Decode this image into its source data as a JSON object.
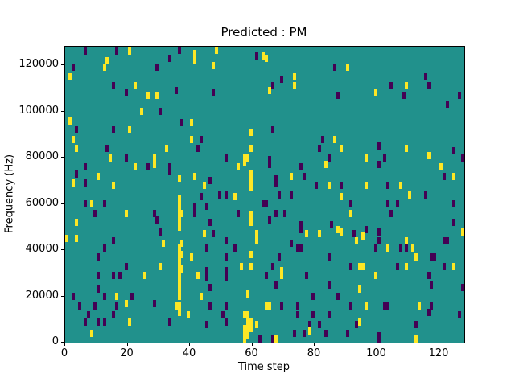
{
  "chart_data": {
    "type": "heatmap",
    "title": "Predicted : PM",
    "xlabel": "Time step",
    "ylabel": "Frequency (Hz)",
    "xlim": [
      0,
      128
    ],
    "ylim": [
      0,
      128000
    ],
    "xticks": [
      0,
      20,
      40,
      60,
      80,
      100,
      120
    ],
    "yticks": [
      0,
      20000,
      40000,
      60000,
      80000,
      100000,
      120000
    ],
    "grid": false,
    "legend": null,
    "colors": {
      "background": "#21918c",
      "low": "#440154",
      "high": "#fde725",
      "figure": "#ffffff",
      "text": "#000000"
    },
    "freq_unit": "kHz",
    "cell_legend": "cells are [time_step, frequency_kHz, value] where value 1=high(yellow) 0=low(dark)",
    "cells": [
      [
        6,
        126,
        0
      ],
      [
        16,
        126,
        0
      ],
      [
        20,
        126,
        1
      ],
      [
        48,
        127,
        1
      ],
      [
        13,
        122,
        1
      ],
      [
        12,
        119,
        1
      ],
      [
        2,
        119,
        0
      ],
      [
        29,
        119,
        0
      ],
      [
        1,
        115,
        1
      ],
      [
        15,
        111,
        0
      ],
      [
        22,
        111,
        1
      ],
      [
        19,
        108,
        0
      ],
      [
        26,
        107,
        1
      ],
      [
        29,
        107,
        1
      ],
      [
        24,
        100,
        1
      ],
      [
        30,
        100,
        0
      ],
      [
        1,
        96,
        1
      ],
      [
        3,
        92,
        0
      ],
      [
        15,
        92,
        0
      ],
      [
        20,
        92,
        1
      ],
      [
        2,
        88,
        1
      ],
      [
        36,
        127,
        0
      ],
      [
        33,
        123,
        0
      ],
      [
        41,
        125,
        1
      ],
      [
        41,
        122,
        1
      ],
      [
        61,
        124,
        0
      ],
      [
        63,
        124,
        1
      ],
      [
        47,
        120,
        1
      ],
      [
        35,
        109,
        0
      ],
      [
        47,
        108,
        0
      ],
      [
        37,
        95,
        0
      ],
      [
        40,
        95,
        1
      ],
      [
        59,
        91,
        1
      ],
      [
        40,
        88,
        1
      ],
      [
        43,
        88,
        0
      ],
      [
        64,
        123,
        1
      ],
      [
        86,
        119,
        0
      ],
      [
        90,
        119,
        1
      ],
      [
        69,
        114,
        0
      ],
      [
        73,
        115,
        1
      ],
      [
        66,
        111,
        0
      ],
      [
        73,
        111,
        1
      ],
      [
        65,
        109,
        1
      ],
      [
        87,
        107,
        0
      ],
      [
        66,
        92,
        0
      ],
      [
        82,
        88,
        0
      ],
      [
        86,
        88,
        1
      ],
      [
        115,
        115,
        0
      ],
      [
        104,
        111,
        0
      ],
      [
        109,
        111,
        1
      ],
      [
        116,
        111,
        0
      ],
      [
        99,
        108,
        1
      ],
      [
        108,
        107,
        0
      ],
      [
        126,
        107,
        0
      ],
      [
        122,
        103,
        0
      ],
      [
        3,
        84,
        1
      ],
      [
        13,
        84,
        0
      ],
      [
        14,
        80,
        1
      ],
      [
        19,
        80,
        0
      ],
      [
        28,
        80,
        1
      ],
      [
        28,
        77,
        1
      ],
      [
        6,
        76,
        0
      ],
      [
        22,
        76,
        1
      ],
      [
        26,
        76,
        0
      ],
      [
        3,
        73,
        0
      ],
      [
        10,
        72,
        1
      ],
      [
        2,
        69,
        1
      ],
      [
        6,
        69,
        0
      ],
      [
        15,
        68,
        1
      ],
      [
        6,
        60,
        0
      ],
      [
        8,
        60,
        1
      ],
      [
        12,
        60,
        0
      ],
      [
        9,
        56,
        0
      ],
      [
        19,
        56,
        1
      ],
      [
        28,
        56,
        0
      ],
      [
        29,
        53,
        0
      ],
      [
        3,
        52,
        1
      ],
      [
        30,
        48,
        0
      ],
      [
        0,
        45,
        1
      ],
      [
        3,
        45,
        1
      ],
      [
        15,
        44,
        0
      ],
      [
        32,
        84,
        1
      ],
      [
        42,
        84,
        0
      ],
      [
        59,
        84,
        1
      ],
      [
        51,
        80,
        0
      ],
      [
        57,
        80,
        1
      ],
      [
        58,
        80,
        1
      ],
      [
        57,
        78,
        1
      ],
      [
        33,
        76,
        0
      ],
      [
        33,
        74,
        0
      ],
      [
        55,
        76,
        1
      ],
      [
        36,
        71,
        1
      ],
      [
        41,
        72,
        1
      ],
      [
        46,
        70,
        0
      ],
      [
        44,
        68,
        1
      ],
      [
        59,
        73,
        1
      ],
      [
        59,
        70,
        1
      ],
      [
        59,
        67,
        1
      ],
      [
        49,
        64,
        0
      ],
      [
        51,
        64,
        0
      ],
      [
        54,
        63,
        1
      ],
      [
        43,
        63,
        0
      ],
      [
        41,
        59,
        0
      ],
      [
        45,
        59,
        0
      ],
      [
        36,
        62,
        1
      ],
      [
        36,
        59,
        1
      ],
      [
        36,
        56,
        1
      ],
      [
        37,
        56,
        1
      ],
      [
        36,
        53,
        1
      ],
      [
        36,
        50,
        1
      ],
      [
        55,
        56,
        0
      ],
      [
        59,
        55,
        1
      ],
      [
        59,
        52,
        1
      ],
      [
        41,
        56,
        0
      ],
      [
        46,
        52,
        0
      ],
      [
        44,
        47,
        1
      ],
      [
        47,
        47,
        0
      ],
      [
        31,
        43,
        1
      ],
      [
        51,
        44,
        0
      ],
      [
        61,
        47,
        1
      ],
      [
        61,
        44,
        1
      ],
      [
        37,
        43,
        1
      ],
      [
        81,
        84,
        0
      ],
      [
        88,
        84,
        1
      ],
      [
        65,
        79,
        0
      ],
      [
        65,
        77,
        0
      ],
      [
        84,
        80,
        0
      ],
      [
        75,
        76,
        0
      ],
      [
        83,
        77,
        1
      ],
      [
        72,
        72,
        1
      ],
      [
        76,
        72,
        0
      ],
      [
        67,
        71,
        0
      ],
      [
        67,
        69,
        0
      ],
      [
        80,
        68,
        0
      ],
      [
        84,
        68,
        1
      ],
      [
        88,
        68,
        0
      ],
      [
        68,
        64,
        0
      ],
      [
        72,
        64,
        0
      ],
      [
        88,
        63,
        1
      ],
      [
        63,
        60,
        0
      ],
      [
        64,
        60,
        0
      ],
      [
        91,
        60,
        0
      ],
      [
        67,
        56,
        0
      ],
      [
        70,
        56,
        0
      ],
      [
        91,
        56,
        1
      ],
      [
        65,
        53,
        0
      ],
      [
        75,
        51,
        0
      ],
      [
        75,
        49,
        0
      ],
      [
        85,
        51,
        0
      ],
      [
        77,
        47,
        1
      ],
      [
        81,
        47,
        1
      ],
      [
        87,
        49,
        1
      ],
      [
        88,
        48,
        1
      ],
      [
        92,
        47,
        0
      ],
      [
        95,
        46,
        1
      ],
      [
        72,
        43,
        0
      ],
      [
        93,
        44,
        1
      ],
      [
        100,
        85,
        0
      ],
      [
        109,
        84,
        1
      ],
      [
        124,
        83,
        0
      ],
      [
        96,
        80,
        1
      ],
      [
        102,
        80,
        0
      ],
      [
        116,
        81,
        1
      ],
      [
        127,
        80,
        0
      ],
      [
        100,
        77,
        0
      ],
      [
        120,
        76,
        1
      ],
      [
        121,
        72,
        0
      ],
      [
        124,
        72,
        1
      ],
      [
        96,
        68,
        1
      ],
      [
        103,
        68,
        0
      ],
      [
        107,
        68,
        1
      ],
      [
        110,
        64,
        1
      ],
      [
        115,
        64,
        0
      ],
      [
        103,
        60,
        0
      ],
      [
        106,
        60,
        0
      ],
      [
        124,
        60,
        0
      ],
      [
        104,
        56,
        0
      ],
      [
        124,
        52,
        0
      ],
      [
        96,
        49,
        0
      ],
      [
        100,
        48,
        0
      ],
      [
        127,
        48,
        1
      ],
      [
        100,
        44,
        0
      ],
      [
        109,
        44,
        1
      ],
      [
        121,
        44,
        0
      ],
      [
        122,
        44,
        0
      ],
      [
        12,
        41,
        0
      ],
      [
        10,
        37,
        0
      ],
      [
        19,
        33,
        0
      ],
      [
        30,
        33,
        1
      ],
      [
        10,
        29,
        0
      ],
      [
        15,
        29,
        0
      ],
      [
        17,
        29,
        0
      ],
      [
        25,
        29,
        1
      ],
      [
        10,
        23,
        0
      ],
      [
        2,
        20,
        0
      ],
      [
        12,
        20,
        0
      ],
      [
        16,
        20,
        1
      ],
      [
        21,
        20,
        0
      ],
      [
        4,
        16,
        0
      ],
      [
        9,
        16,
        0
      ],
      [
        16,
        16,
        0
      ],
      [
        19,
        17,
        1
      ],
      [
        28,
        17,
        0
      ],
      [
        7,
        12,
        0
      ],
      [
        15,
        12,
        0
      ],
      [
        6,
        9,
        0
      ],
      [
        10,
        9,
        0
      ],
      [
        12,
        9,
        0
      ],
      [
        20,
        9,
        1
      ],
      [
        8,
        4,
        1
      ],
      [
        36,
        41,
        1
      ],
      [
        45,
        41,
        0
      ],
      [
        54,
        41,
        0
      ],
      [
        36,
        38,
        1
      ],
      [
        37,
        38,
        1
      ],
      [
        59,
        38,
        1
      ],
      [
        51,
        37,
        0
      ],
      [
        40,
        37,
        1
      ],
      [
        36,
        35,
        1
      ],
      [
        56,
        33,
        1
      ],
      [
        59,
        33,
        1
      ],
      [
        36,
        32,
        1
      ],
      [
        37,
        32,
        1
      ],
      [
        51,
        31,
        0
      ],
      [
        45,
        31,
        0
      ],
      [
        42,
        29,
        1
      ],
      [
        36,
        29,
        1
      ],
      [
        51,
        28,
        0
      ],
      [
        45,
        28,
        0
      ],
      [
        36,
        26,
        1
      ],
      [
        46,
        24,
        0
      ],
      [
        36,
        23,
        1
      ],
      [
        58,
        21,
        1
      ],
      [
        43,
        20,
        1
      ],
      [
        36,
        20,
        1
      ],
      [
        46,
        16,
        0
      ],
      [
        51,
        16,
        0
      ],
      [
        35,
        16,
        1
      ],
      [
        36,
        16,
        1
      ],
      [
        36,
        13,
        1
      ],
      [
        39,
        12,
        1
      ],
      [
        50,
        12,
        0
      ],
      [
        57,
        12,
        1
      ],
      [
        58,
        12,
        1
      ],
      [
        33,
        9,
        0
      ],
      [
        45,
        8,
        0
      ],
      [
        51,
        9,
        0
      ],
      [
        58,
        9,
        1
      ],
      [
        59,
        9,
        1
      ],
      [
        61,
        8,
        1
      ],
      [
        57,
        6,
        1
      ],
      [
        58,
        6,
        1
      ],
      [
        59,
        6,
        1
      ],
      [
        57,
        3,
        1
      ],
      [
        58,
        3,
        1
      ],
      [
        62,
        1,
        0
      ],
      [
        57,
        1,
        1
      ],
      [
        74,
        41,
        0
      ],
      [
        75,
        41,
        0
      ],
      [
        68,
        37,
        0
      ],
      [
        84,
        37,
        0
      ],
      [
        94,
        33,
        1
      ],
      [
        95,
        33,
        1
      ],
      [
        66,
        33,
        0
      ],
      [
        69,
        31,
        1
      ],
      [
        69,
        29,
        1
      ],
      [
        91,
        33,
        0
      ],
      [
        64,
        29,
        0
      ],
      [
        77,
        29,
        0
      ],
      [
        67,
        25,
        0
      ],
      [
        84,
        25,
        0
      ],
      [
        94,
        23,
        1
      ],
      [
        79,
        20,
        0
      ],
      [
        87,
        20,
        0
      ],
      [
        64,
        16,
        1
      ],
      [
        65,
        16,
        1
      ],
      [
        69,
        16,
        0
      ],
      [
        74,
        16,
        0
      ],
      [
        91,
        16,
        0
      ],
      [
        74,
        12,
        0
      ],
      [
        79,
        12,
        0
      ],
      [
        84,
        12,
        0
      ],
      [
        78,
        8,
        0
      ],
      [
        78,
        5,
        1
      ],
      [
        81,
        8,
        0
      ],
      [
        93,
        8,
        0
      ],
      [
        94,
        9,
        1
      ],
      [
        73,
        4,
        0
      ],
      [
        76,
        4,
        0
      ],
      [
        83,
        4,
        0
      ],
      [
        90,
        4,
        0
      ],
      [
        66,
        1,
        0
      ],
      [
        67,
        1,
        1
      ],
      [
        99,
        41,
        0
      ],
      [
        103,
        41,
        1
      ],
      [
        107,
        41,
        0
      ],
      [
        109,
        41,
        0
      ],
      [
        111,
        41,
        1
      ],
      [
        112,
        37,
        1
      ],
      [
        117,
        37,
        0
      ],
      [
        118,
        37,
        0
      ],
      [
        121,
        33,
        0
      ],
      [
        106,
        33,
        0
      ],
      [
        109,
        33,
        1
      ],
      [
        124,
        33,
        1
      ],
      [
        99,
        29,
        1
      ],
      [
        116,
        29,
        0
      ],
      [
        117,
        25,
        0
      ],
      [
        127,
        24,
        0
      ],
      [
        96,
        16,
        1
      ],
      [
        102,
        16,
        0
      ],
      [
        103,
        16,
        0
      ],
      [
        113,
        16,
        1
      ],
      [
        117,
        16,
        0
      ],
      [
        116,
        13,
        0
      ],
      [
        126,
        12,
        0
      ],
      [
        112,
        8,
        0
      ],
      [
        100,
        3,
        0
      ],
      [
        100,
        1,
        0
      ],
      [
        112,
        1,
        1
      ]
    ]
  }
}
